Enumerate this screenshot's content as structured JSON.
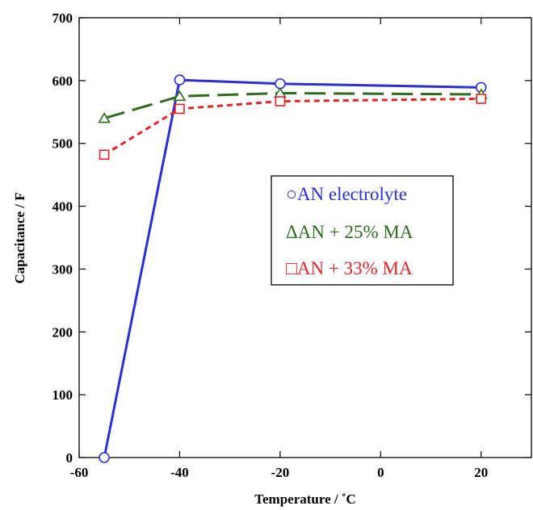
{
  "chart_data": {
    "type": "line",
    "title": "",
    "xlabel": "Temperature / ˚C",
    "ylabel": "Capacitance / F",
    "xlim": [
      -60,
      30
    ],
    "ylim": [
      0,
      700
    ],
    "xticks": [
      -60,
      -40,
      -20,
      0,
      20
    ],
    "yticks": [
      0,
      100,
      200,
      300,
      400,
      500,
      600,
      700
    ],
    "grid": false,
    "legend_position": "center-right",
    "series": [
      {
        "name": "AN electrolyte",
        "legend_marker": "○",
        "color": "#2a2fd6",
        "marker": "circle",
        "line_style": "solid",
        "x": [
          -55,
          -40,
          -20,
          20
        ],
        "y": [
          0,
          601,
          595,
          589
        ]
      },
      {
        "name": "AN + 25% MA",
        "legend_marker": "Δ",
        "color": "#2e6b1e",
        "marker": "triangle",
        "line_style": "long-dash",
        "x": [
          -55,
          -40,
          -20,
          20
        ],
        "y": [
          540,
          575,
          580,
          578
        ]
      },
      {
        "name": "AN + 33% MA",
        "legend_marker": "□",
        "color": "#e0262a",
        "marker": "square",
        "line_style": "short-dash",
        "x": [
          -55,
          -40,
          -20,
          20
        ],
        "y": [
          482,
          555,
          567,
          571
        ]
      }
    ]
  }
}
